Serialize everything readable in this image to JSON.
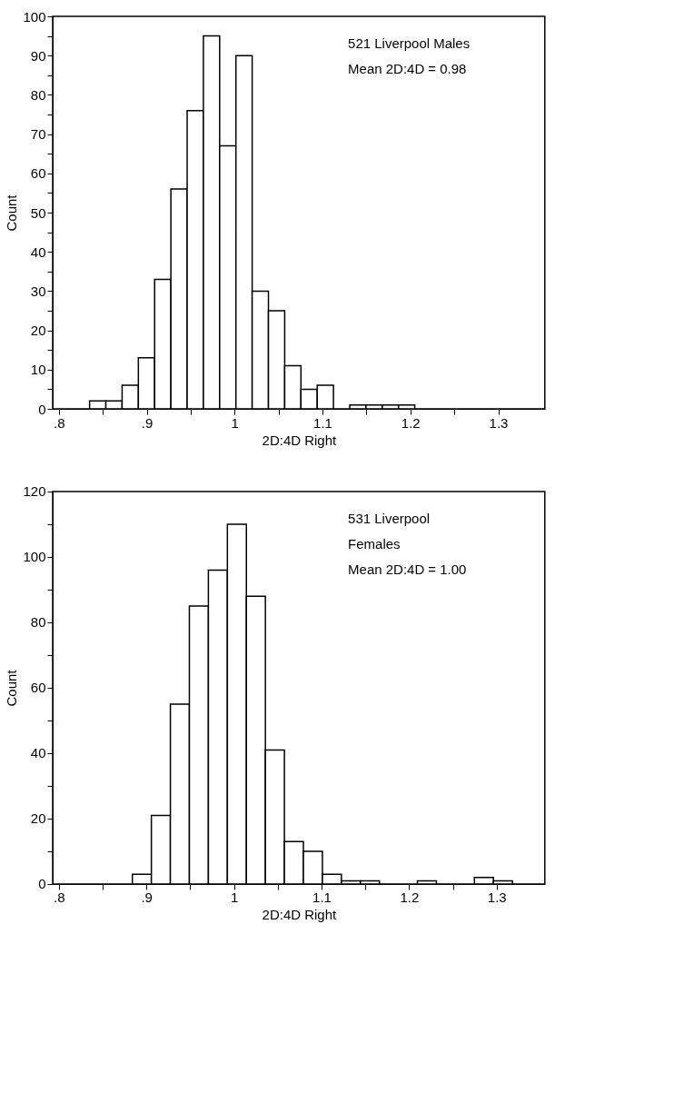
{
  "chart_data": [
    {
      "type": "histogram",
      "xlabel": "2D:4D Right",
      "ylabel": "Count",
      "annotations": [
        "521 Liverpool Males",
        "Mean 2D:4D = 0.98"
      ],
      "bins": [
        0.835,
        0.8535,
        0.872,
        0.8905,
        0.909,
        0.9275,
        0.946,
        0.9645,
        0.983,
        1.0015,
        1.02,
        1.0385,
        1.057,
        1.0755,
        1.094,
        1.1125,
        1.131,
        1.1495,
        1.168,
        1.1865,
        1.205
      ],
      "values": [
        2,
        2,
        6,
        13,
        33,
        56,
        76,
        95,
        67,
        90,
        30,
        25,
        11,
        5,
        6,
        0,
        1,
        1,
        1,
        1
      ],
      "color": "#ffffff",
      "xlim": [
        0.793,
        1.353
      ],
      "ylim": [
        0,
        100
      ],
      "xticks": [
        {
          "value": 0.8,
          "label": ".8"
        },
        {
          "value": 0.85,
          "label": null
        },
        {
          "value": 0.9,
          "label": ".9"
        },
        {
          "value": 0.95,
          "label": null
        },
        1,
        {
          "value": 1.05,
          "label": null
        },
        1.1,
        {
          "value": 1.15,
          "label": null
        },
        1.2,
        {
          "value": 1.25,
          "label": null
        },
        1.3
      ],
      "yticks": [
        0,
        {
          "value": 5,
          "label": null
        },
        10,
        {
          "value": 15,
          "label": null
        },
        20,
        {
          "value": 25,
          "label": null
        },
        30,
        {
          "value": 35,
          "label": null
        },
        40,
        {
          "value": 45,
          "label": null
        },
        50,
        {
          "value": 55,
          "label": null
        },
        60,
        {
          "value": 65,
          "label": null
        },
        70,
        {
          "value": 75,
          "label": null
        },
        80,
        {
          "value": 85,
          "label": null
        },
        90,
        {
          "value": 95,
          "label": null
        },
        100
      ],
      "grid": false
    },
    {
      "type": "histogram",
      "xlabel": "2D:4D Right",
      "ylabel": "Count",
      "annotations": [
        "531 Liverpool",
        "Females",
        "Mean 2D:4D = 1.00"
      ],
      "bins": [
        0.884,
        0.9057,
        0.9274,
        0.9491,
        0.9708,
        0.9925,
        1.0142,
        1.0359,
        1.0576,
        1.0793,
        1.101,
        1.1227,
        1.1444,
        1.1661,
        1.1878,
        1.2095,
        1.2312,
        1.2529,
        1.2746,
        1.2963,
        1.318
      ],
      "values": [
        3,
        21,
        55,
        85,
        96,
        110,
        88,
        41,
        13,
        10,
        3,
        1,
        1,
        0,
        0,
        1,
        0,
        0,
        2,
        1
      ],
      "color": "#ffffff",
      "xlim": [
        0.793,
        1.355
      ],
      "ylim": [
        0,
        120
      ],
      "xticks": [
        {
          "value": 0.8,
          "label": ".8"
        },
        {
          "value": 0.85,
          "label": null
        },
        {
          "value": 0.9,
          "label": ".9"
        },
        {
          "value": 0.95,
          "label": null
        },
        1,
        {
          "value": 1.05,
          "label": null
        },
        1.1,
        {
          "value": 1.15,
          "label": null
        },
        1.2,
        {
          "value": 1.25,
          "label": null
        },
        1.3
      ],
      "yticks": [
        0,
        {
          "value": 10,
          "label": null
        },
        20,
        {
          "value": 30,
          "label": null
        },
        40,
        {
          "value": 50,
          "label": null
        },
        60,
        {
          "value": 70,
          "label": null
        },
        80,
        {
          "value": 90,
          "label": null
        },
        100,
        {
          "value": 110,
          "label": null
        },
        120
      ],
      "grid": false
    }
  ]
}
